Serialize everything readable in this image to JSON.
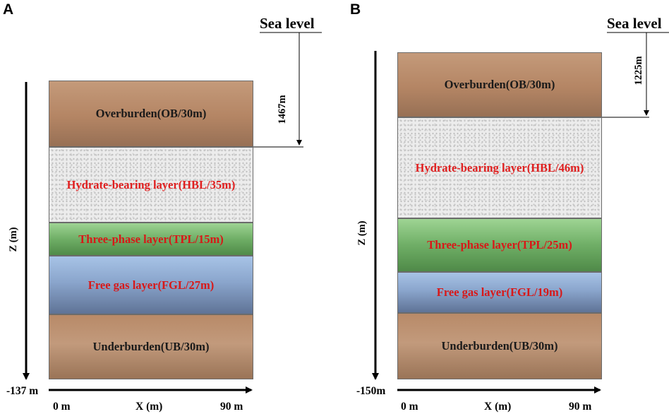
{
  "panels": [
    {
      "label": "A",
      "sea_level": "Sea level",
      "depth_label": "1467m",
      "z_label": "Z (m)",
      "z_bottom": "-137 m",
      "x_start": "0 m",
      "x_label": "X (m)",
      "x_end": "90 m",
      "layers": [
        {
          "name": "Overburden(OB/30m)"
        },
        {
          "name": "Hydrate-bearing layer(HBL/35m)"
        },
        {
          "name": "Three-phase layer(TPL/15m)"
        },
        {
          "name": "Free gas layer(FGL/27m)"
        },
        {
          "name": "Underburden(UB/30m)"
        }
      ]
    },
    {
      "label": "B",
      "sea_level": "Sea level",
      "depth_label": "1225m",
      "z_label": "Z (m)",
      "z_bottom": "-150m",
      "x_start": "0 m",
      "x_label": "X (m)",
      "x_end": "90 m",
      "layers": [
        {
          "name": "Overburden(OB/30m)"
        },
        {
          "name": "Hydrate-bearing layer(HBL/46m)"
        },
        {
          "name": "Three-phase layer(TPL/25m)"
        },
        {
          "name": "Free gas layer(FGL/19m)"
        },
        {
          "name": "Underburden(UB/30m)"
        }
      ]
    }
  ]
}
